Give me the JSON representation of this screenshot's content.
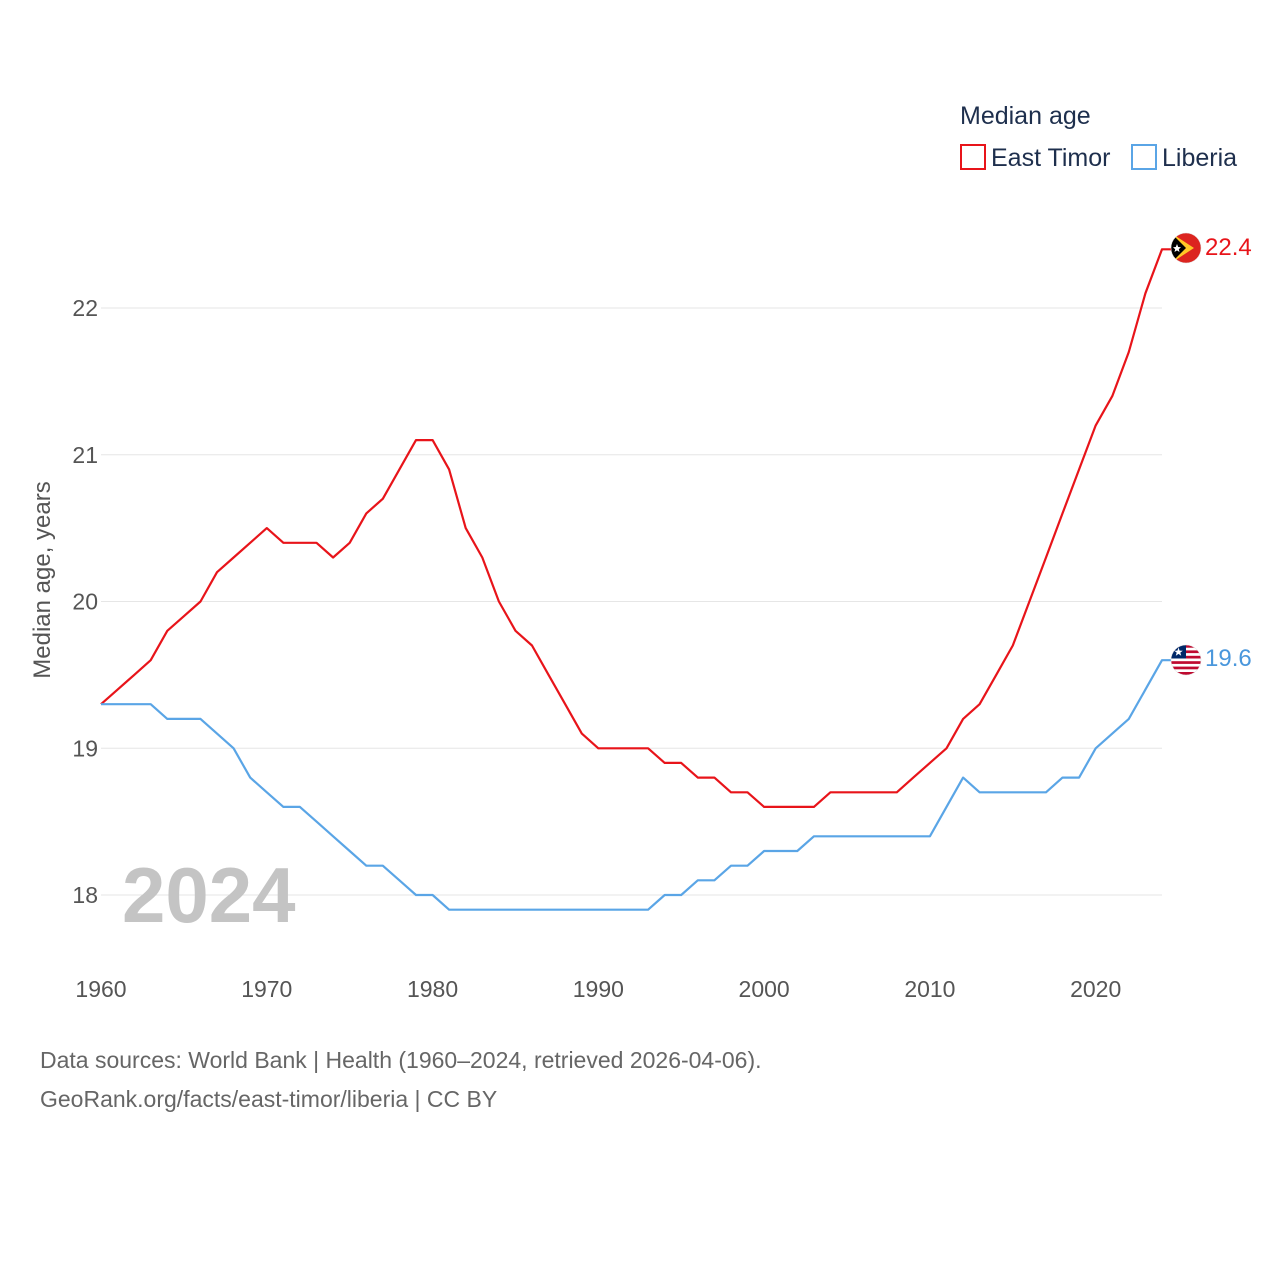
{
  "chart_data": {
    "type": "line",
    "title": "",
    "ylabel": "Median age, years",
    "xlabel": "",
    "xlim": [
      1960,
      2024
    ],
    "ylim": [
      17.4,
      22.7
    ],
    "yticks": [
      18,
      19,
      20,
      21,
      22
    ],
    "xticks": [
      1960,
      1970,
      1980,
      1990,
      2000,
      2010,
      2020
    ],
    "grid": true,
    "legend_position": "top-right",
    "legend_title": "Median age",
    "year_label": "2024",
    "x": [
      1960,
      1961,
      1962,
      1963,
      1964,
      1965,
      1966,
      1967,
      1968,
      1969,
      1970,
      1971,
      1972,
      1973,
      1974,
      1975,
      1976,
      1977,
      1978,
      1979,
      1980,
      1981,
      1982,
      1983,
      1984,
      1985,
      1986,
      1987,
      1988,
      1989,
      1990,
      1991,
      1992,
      1993,
      1994,
      1995,
      1996,
      1997,
      1998,
      1999,
      2000,
      2001,
      2002,
      2003,
      2004,
      2005,
      2006,
      2007,
      2008,
      2009,
      2010,
      2011,
      2012,
      2013,
      2014,
      2015,
      2016,
      2017,
      2018,
      2019,
      2020,
      2021,
      2022,
      2023,
      2024
    ],
    "series": [
      {
        "name": "East Timor",
        "color": "#e8141a",
        "end_label": "22.4",
        "values": [
          19.3,
          19.4,
          19.5,
          19.6,
          19.8,
          19.9,
          20.0,
          20.2,
          20.3,
          20.4,
          20.5,
          20.4,
          20.4,
          20.4,
          20.3,
          20.4,
          20.6,
          20.7,
          20.9,
          21.1,
          21.1,
          20.9,
          20.5,
          20.3,
          20.0,
          19.8,
          19.7,
          19.5,
          19.3,
          19.1,
          19.0,
          19.0,
          19.0,
          19.0,
          18.9,
          18.9,
          18.8,
          18.8,
          18.7,
          18.7,
          18.6,
          18.6,
          18.6,
          18.6,
          18.7,
          18.7,
          18.7,
          18.7,
          18.7,
          18.8,
          18.9,
          19.0,
          19.2,
          19.3,
          19.5,
          19.7,
          20.0,
          20.3,
          20.6,
          20.9,
          21.2,
          21.4,
          21.7,
          22.1,
          22.4
        ]
      },
      {
        "name": "Liberia",
        "color": "#5aa5e6",
        "end_label": "19.6",
        "values": [
          19.3,
          19.3,
          19.3,
          19.3,
          19.2,
          19.2,
          19.2,
          19.1,
          19.0,
          18.8,
          18.7,
          18.6,
          18.6,
          18.5,
          18.4,
          18.3,
          18.2,
          18.2,
          18.1,
          18.0,
          18.0,
          17.9,
          17.9,
          17.9,
          17.9,
          17.9,
          17.9,
          17.9,
          17.9,
          17.9,
          17.9,
          17.9,
          17.9,
          17.9,
          18.0,
          18.0,
          18.1,
          18.1,
          18.2,
          18.2,
          18.3,
          18.3,
          18.3,
          18.4,
          18.4,
          18.4,
          18.4,
          18.4,
          18.4,
          18.4,
          18.4,
          18.6,
          18.8,
          18.7,
          18.7,
          18.7,
          18.7,
          18.7,
          18.8,
          18.8,
          19.0,
          19.1,
          19.2,
          19.4,
          19.6
        ]
      }
    ]
  },
  "icons": {
    "east_timor_flag": "east-timor-flag-icon",
    "liberia_flag": "liberia-flag-icon"
  },
  "source": {
    "line1": "Data sources: World Bank | Health (1960–2024, retrieved 2026-04-06).",
    "line2": "GeoRank.org/facts/east-timor/liberia | CC BY"
  }
}
